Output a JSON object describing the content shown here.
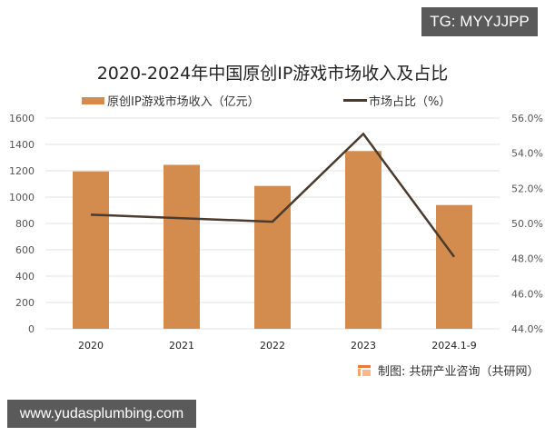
{
  "watermark_badge": {
    "text": "TG: MYYJJPP"
  },
  "url_banner": {
    "text": "www.yudasplumbing.com"
  },
  "source": {
    "text": "制图: 共研产业咨询（共研网）"
  },
  "colors": {
    "bar": "#d48c4e",
    "line": "#4a3b2e",
    "grid": "#e2e2e2",
    "axis_text": "#555555"
  },
  "chart_data": {
    "type": "bar+line",
    "title": "2020-2024年中国原创IP游戏市场收入及占比",
    "categories": [
      "2020",
      "2021",
      "2022",
      "2023",
      "2024.1-9"
    ],
    "series": [
      {
        "name": "原创IP游戏市场收入（亿元）",
        "type": "bar",
        "axis": "left",
        "values": [
          1195,
          1245,
          1085,
          1350,
          940
        ]
      },
      {
        "name": "市场占比（%）",
        "type": "line",
        "axis": "right",
        "values": [
          50.5,
          50.3,
          50.1,
          55.1,
          48.1
        ]
      }
    ],
    "y_left": {
      "min": 0,
      "max": 1600,
      "ticks": [
        "0",
        "200",
        "400",
        "600",
        "800",
        "1000",
        "1200",
        "1400",
        "1600"
      ]
    },
    "y_right": {
      "min": 44,
      "max": 56,
      "ticks": [
        "44.0%",
        "46.0%",
        "48.0%",
        "50.0%",
        "52.0%",
        "54.0%",
        "56.0%"
      ]
    },
    "legend_position": "top",
    "grid": true
  }
}
